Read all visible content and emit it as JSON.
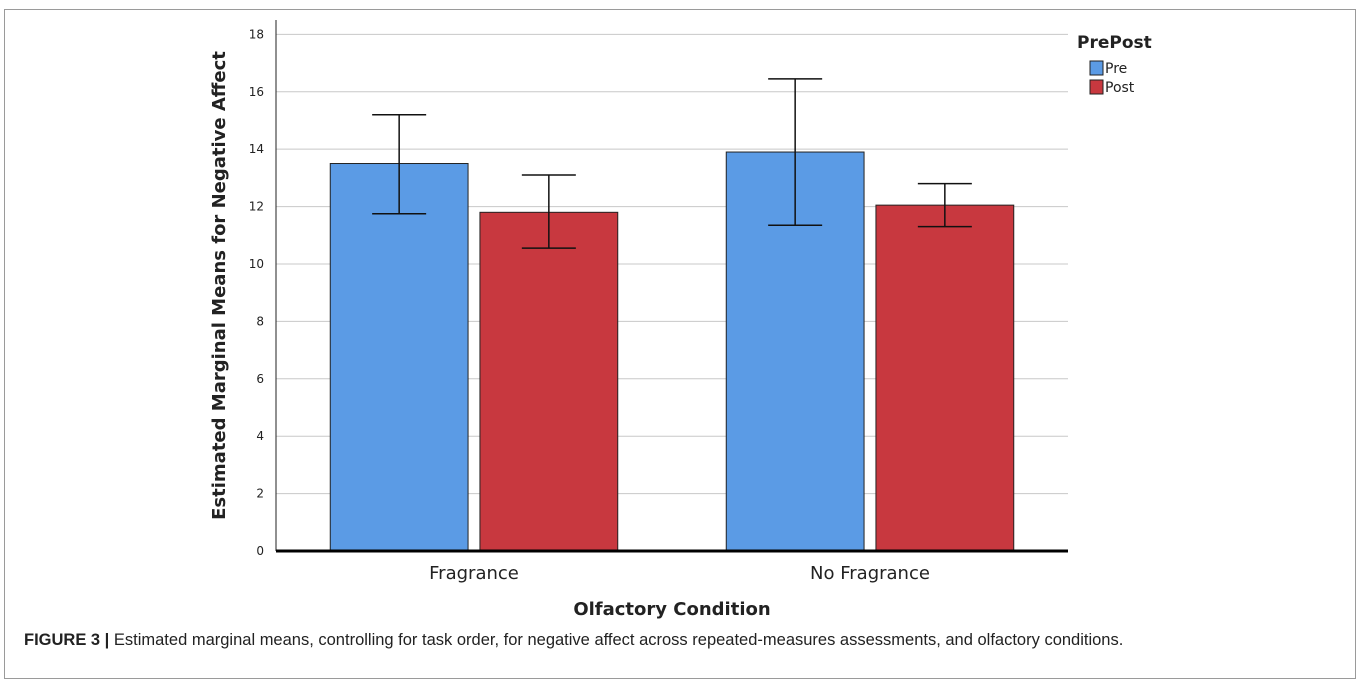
{
  "chart_data": {
    "type": "bar",
    "categories": [
      "Fragrance",
      "No Fragrance"
    ],
    "series": [
      {
        "name": "Pre",
        "values": [
          13.5,
          13.9
        ],
        "error_low": [
          11.75,
          11.35
        ],
        "error_high": [
          15.2,
          16.45
        ],
        "color": "#5b9be5"
      },
      {
        "name": "Post",
        "values": [
          11.8,
          12.05
        ],
        "error_low": [
          10.55,
          11.3
        ],
        "error_high": [
          13.1,
          12.8
        ],
        "color": "#c8383f"
      }
    ],
    "ylim": [
      0,
      18.5
    ],
    "yticks": [
      0,
      2,
      4,
      6,
      8,
      10,
      12,
      14,
      16,
      18
    ],
    "xlabel": "Olfactory Condition",
    "ylabel": "Estimated Marginal Means for Negative Affect",
    "legend_title": "PrePost",
    "legend_position": "top-right",
    "grid": true
  },
  "caption": {
    "label": "FIGURE 3 |",
    "text": " Estimated marginal means, controlling for task order, for negative affect across repeated-measures assessments, and olfactory conditions."
  }
}
